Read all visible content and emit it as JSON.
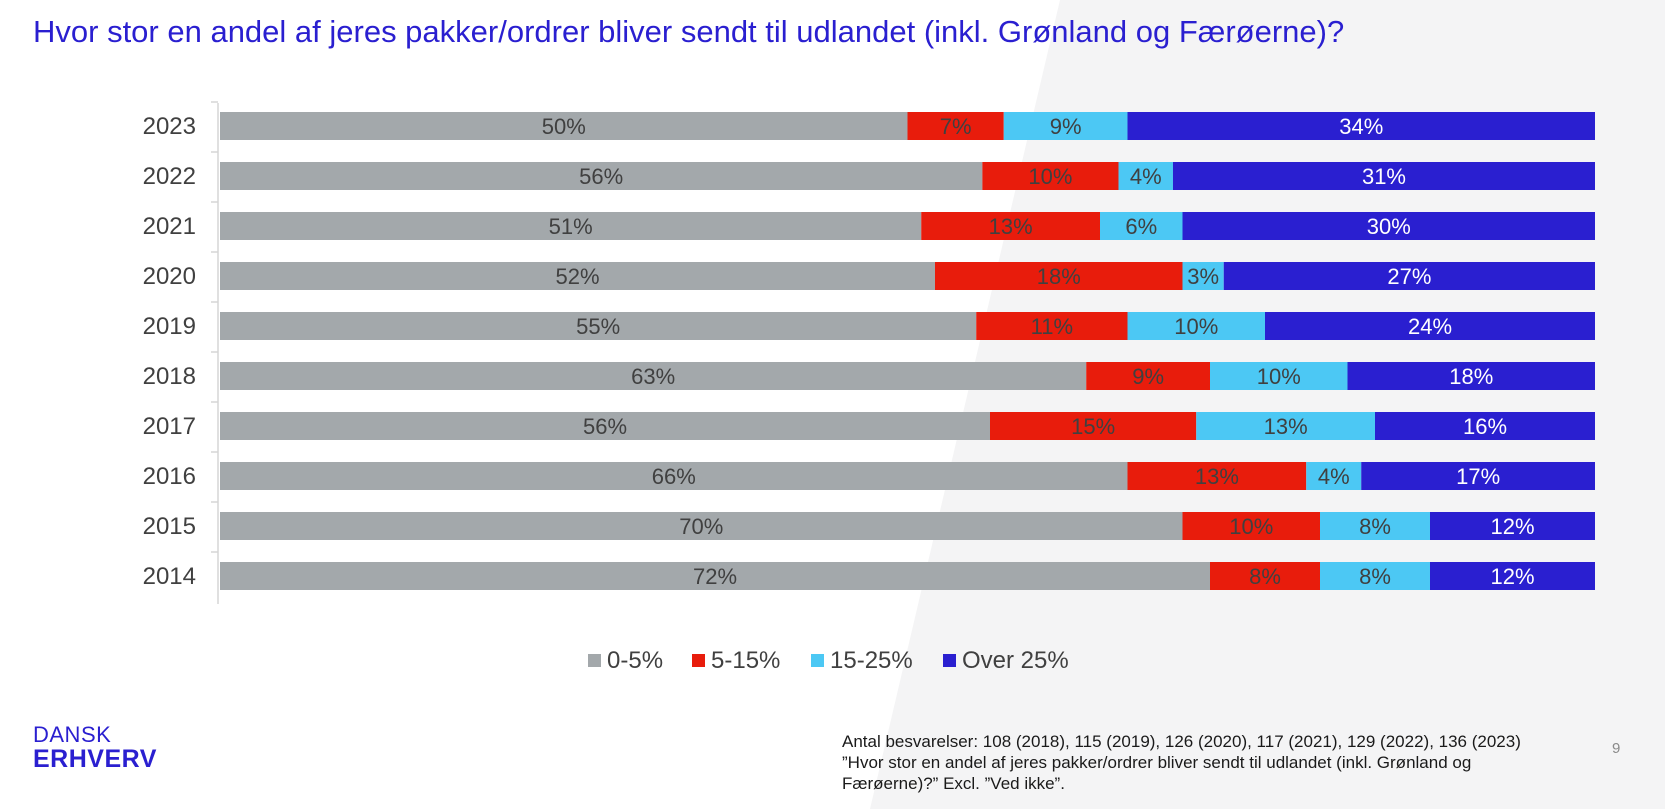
{
  "slide": {
    "title": "Hvor stor en andel af jeres pakker/ordrer bliver sendt til udlandet (inkl. Grønland og Færøerne)?",
    "logo_line1": "DANSK",
    "logo_line2": "ERHVERV",
    "footnote_line1": "Antal besvarelser: 108 (2018), 115 (2019), 126 (2020), 117 (2021), 129 (2022), 136 (2023)",
    "footnote_line2": "”Hvor stor en andel af jeres pakker/ordrer bliver sendt til udlandet (inkl. Grønland og",
    "footnote_line3": "Færøerne)?” Excl. ”Ved ikke”.",
    "page_number": "9"
  },
  "chart_data": {
    "type": "bar",
    "orientation": "horizontal",
    "stacked": "100%",
    "categories": [
      "2023",
      "2022",
      "2021",
      "2020",
      "2019",
      "2018",
      "2017",
      "2016",
      "2015",
      "2014"
    ],
    "series": [
      {
        "name": "0-5%",
        "color": "#a3a8ab",
        "label_color": "#404040",
        "values": [
          50,
          56,
          51,
          52,
          55,
          63,
          56,
          66,
          70,
          72
        ]
      },
      {
        "name": "5-15%",
        "color": "#e81c0c",
        "label_color": "#404040",
        "values": [
          7,
          10,
          13,
          18,
          11,
          9,
          15,
          13,
          10,
          8
        ]
      },
      {
        "name": "15-25%",
        "color": "#4cc8f4",
        "label_color": "#404040",
        "values": [
          9,
          4,
          6,
          3,
          10,
          10,
          13,
          4,
          8,
          8
        ]
      },
      {
        "name": "Over 25%",
        "color": "#2a1fd0",
        "label_color": "#ffffff",
        "values": [
          34,
          31,
          30,
          27,
          24,
          18,
          16,
          17,
          12,
          12
        ]
      }
    ],
    "value_suffix": "%",
    "data_labels": true,
    "legend": "bottom",
    "grid": false
  }
}
